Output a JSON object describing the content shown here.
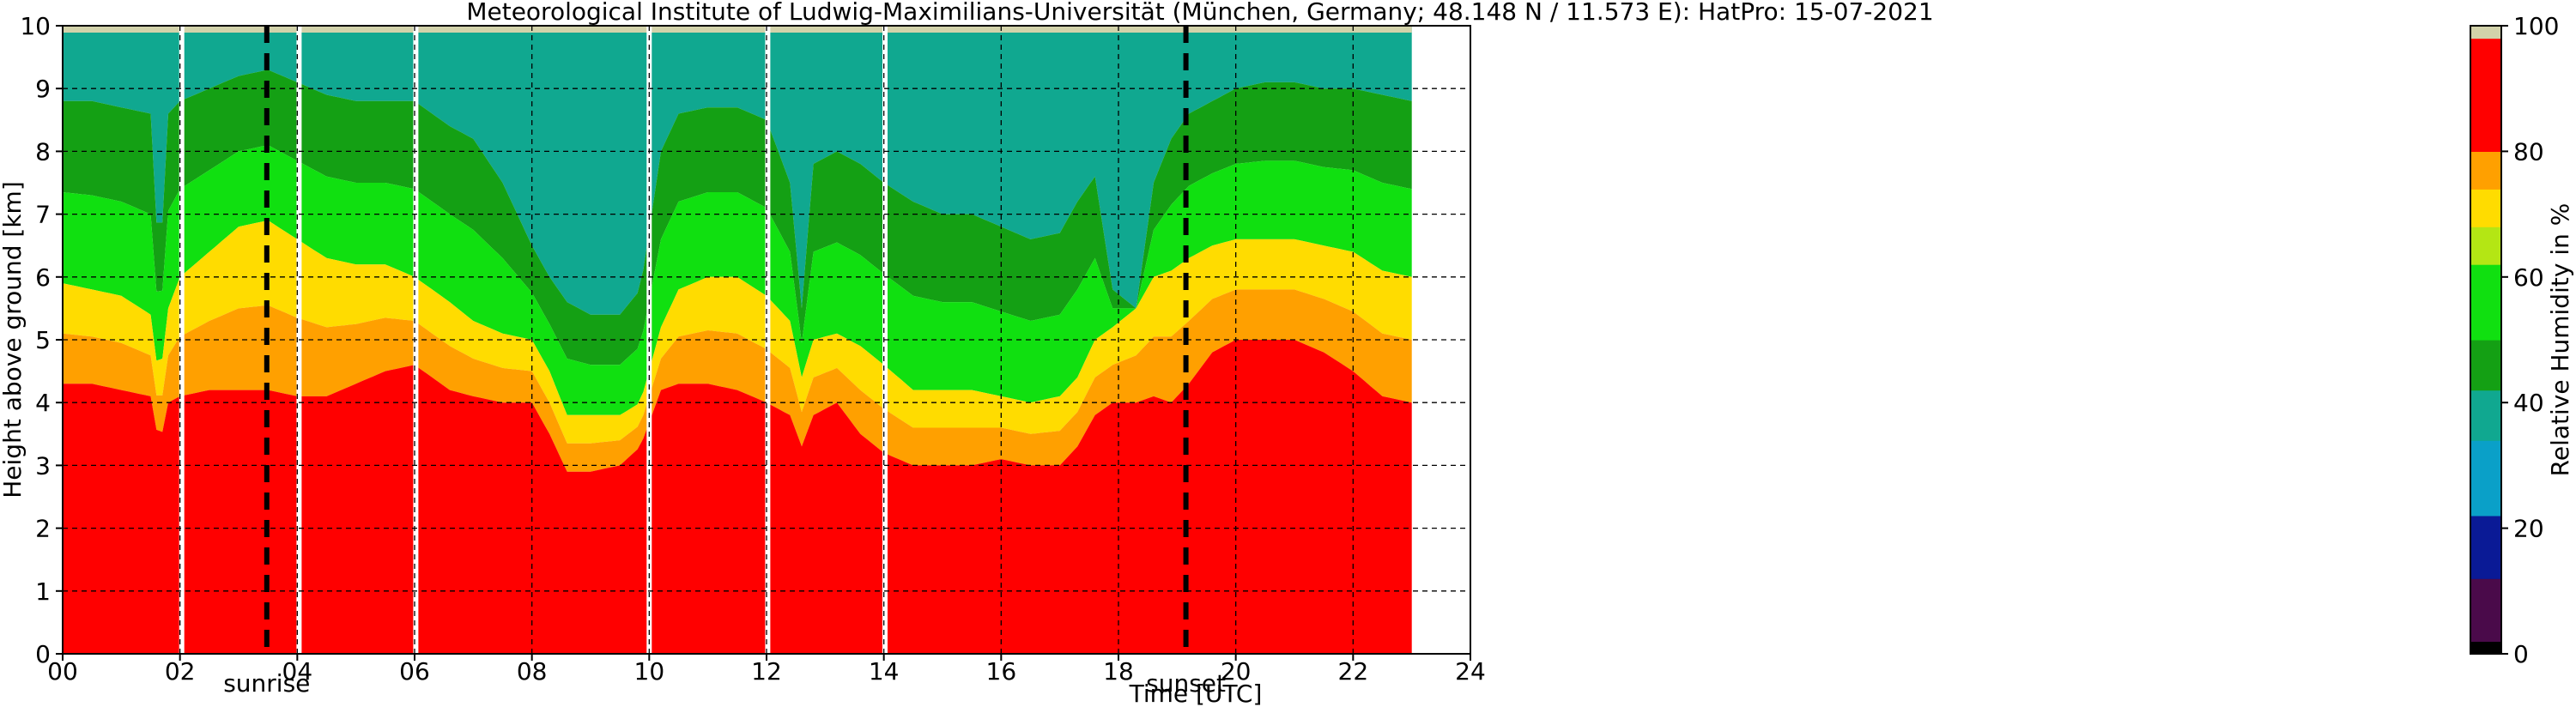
{
  "chart_data": {
    "type": "heatmap",
    "title": "Meteorological Institute of Ludwig-Maximilians-Universität (München, Germany; 48.148 N / 11.573 E):    HatPro: 15-07-2021",
    "xlabel": "Time [UTC]",
    "ylabel": "Height above ground [km]",
    "xlim": [
      0,
      24
    ],
    "ylim": [
      0,
      10
    ],
    "x_tick_labels": [
      "00",
      "02",
      "04",
      "06",
      "08",
      "10",
      "12",
      "14",
      "16",
      "18",
      "20",
      "22",
      "24"
    ],
    "x_tick_values": [
      0,
      2,
      4,
      6,
      8,
      10,
      12,
      14,
      16,
      18,
      20,
      22,
      24
    ],
    "y_tick_labels": [
      "0",
      "1",
      "2",
      "3",
      "4",
      "5",
      "6",
      "7",
      "8",
      "9",
      "10"
    ],
    "y_tick_values": [
      0,
      1,
      2,
      3,
      4,
      5,
      6,
      7,
      8,
      9,
      10
    ],
    "grid": true,
    "data_end_time": 23.0,
    "colorbar": {
      "label": "Relative Humidity in %",
      "ticks": [
        "0",
        "20",
        "40",
        "60",
        "80",
        "100"
      ],
      "tick_values": [
        0,
        20,
        40,
        60,
        80,
        100
      ],
      "range": [
        0,
        100
      ],
      "colors": [
        {
          "from": 0,
          "to": 2,
          "color": "#000000"
        },
        {
          "from": 2,
          "to": 12,
          "color": "#4a0a4a"
        },
        {
          "from": 12,
          "to": 22,
          "color": "#0a1a96"
        },
        {
          "from": 22,
          "to": 34,
          "color": "#0aa0c8"
        },
        {
          "from": 34,
          "to": 42,
          "color": "#10a890"
        },
        {
          "from": 42,
          "to": 50,
          "color": "#14a014"
        },
        {
          "from": 50,
          "to": 62,
          "color": "#10e010"
        },
        {
          "from": 62,
          "to": 68,
          "color": "#b4e614"
        },
        {
          "from": 68,
          "to": 74,
          "color": "#ffdc00"
        },
        {
          "from": 74,
          "to": 80,
          "color": "#ffa000"
        },
        {
          "from": 80,
          "to": 98,
          "color": "#ff0000"
        },
        {
          "from": 98,
          "to": 100,
          "color": "#d2d2aa"
        }
      ]
    },
    "gaps_utc": [
      2.03,
      4.03,
      6.02,
      10.0,
      12.02,
      14.02
    ],
    "events": [
      {
        "label": "sunrise",
        "time": 3.48
      },
      {
        "label": "sunset",
        "time": 19.15
      }
    ],
    "layer_tops_km": {
      "times": [
        0,
        0.5,
        1.0,
        1.5,
        1.65,
        1.8,
        2.0,
        2.5,
        3.0,
        3.5,
        4.0,
        4.5,
        5.0,
        5.5,
        6.0,
        6.3,
        6.6,
        7.0,
        7.5,
        8.0,
        8.3,
        8.6,
        9.0,
        9.5,
        9.85,
        10.2,
        10.5,
        11.0,
        11.5,
        12.0,
        12.4,
        12.6,
        12.8,
        13.2,
        13.6,
        14.0,
        14.5,
        15.0,
        15.5,
        16.0,
        16.5,
        17.0,
        17.3,
        17.6,
        17.9,
        18.3,
        18.6,
        18.9,
        19.2,
        19.6,
        20.0,
        20.5,
        21.0,
        21.5,
        22.0,
        22.5,
        23.0
      ],
      "red_top": [
        4.3,
        4.3,
        4.2,
        4.1,
        3.3,
        4.0,
        4.1,
        4.2,
        4.2,
        4.2,
        4.1,
        4.1,
        4.3,
        4.5,
        4.6,
        4.4,
        4.2,
        4.1,
        4.0,
        4.0,
        3.5,
        2.9,
        2.9,
        3.0,
        3.3,
        4.2,
        4.3,
        4.3,
        4.2,
        4.0,
        3.8,
        3.3,
        3.8,
        4.0,
        3.5,
        3.2,
        3.0,
        3.0,
        3.0,
        3.1,
        3.0,
        3.0,
        3.3,
        3.8,
        4.0,
        4.0,
        4.1,
        4.0,
        4.3,
        4.8,
        5.0,
        5.0,
        5.0,
        4.8,
        4.5,
        4.1,
        4.0
      ],
      "yellow_top": [
        5.9,
        5.8,
        5.7,
        5.4,
        4.3,
        5.5,
        6.0,
        6.4,
        6.8,
        6.9,
        6.6,
        6.3,
        6.2,
        6.2,
        6.0,
        5.8,
        5.6,
        5.3,
        5.1,
        5.0,
        4.5,
        3.8,
        3.8,
        3.8,
        4.0,
        5.2,
        5.8,
        6.0,
        6.0,
        5.7,
        5.3,
        4.4,
        5.0,
        5.1,
        4.9,
        4.6,
        4.2,
        4.2,
        4.2,
        4.1,
        4.0,
        4.1,
        4.4,
        5.0,
        5.2,
        5.5,
        6.0,
        6.1,
        6.3,
        6.5,
        6.6,
        6.6,
        6.6,
        6.5,
        6.4,
        6.1,
        6.0
      ],
      "green_top": [
        8.8,
        8.8,
        8.7,
        8.6,
        6.0,
        8.6,
        8.8,
        9.0,
        9.2,
        9.3,
        9.1,
        8.9,
        8.8,
        8.8,
        8.8,
        8.6,
        8.4,
        8.2,
        7.5,
        6.5,
        6.0,
        5.6,
        5.4,
        5.4,
        5.8,
        8.0,
        8.6,
        8.7,
        8.7,
        8.5,
        7.5,
        5.5,
        7.8,
        8.0,
        7.8,
        7.5,
        7.2,
        7.0,
        7.0,
        6.8,
        6.6,
        6.7,
        7.2,
        7.6,
        5.8,
        5.5,
        7.5,
        8.2,
        8.6,
        8.8,
        9.0,
        9.1,
        9.1,
        9.0,
        9.0,
        8.9,
        8.8
      ]
    }
  }
}
